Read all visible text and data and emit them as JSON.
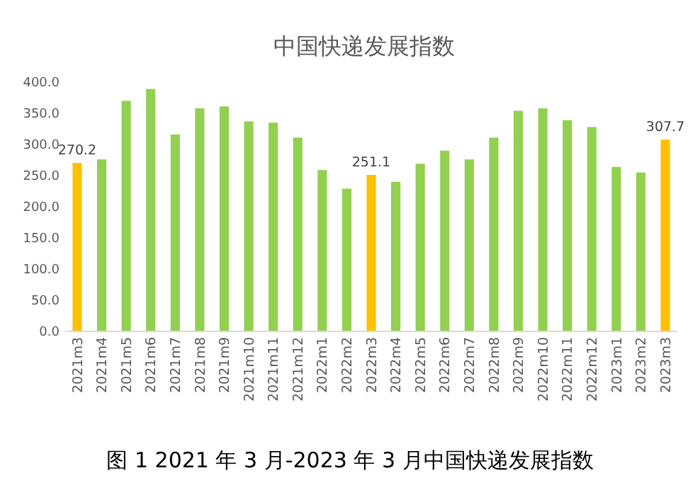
{
  "chart_data": {
    "type": "bar",
    "title": "中国快递发展指数",
    "categories": [
      "2021m3",
      "2021m4",
      "2021m5",
      "2021m6",
      "2021m7",
      "2021m8",
      "2021m9",
      "2021m10",
      "2021m11",
      "2021m12",
      "2022m1",
      "2022m2",
      "2022m3",
      "2022m4",
      "2022m5",
      "2022m6",
      "2022m7",
      "2022m8",
      "2022m9",
      "2022m10",
      "2022m11",
      "2022m12",
      "2023m1",
      "2023m2",
      "2023m3"
    ],
    "values": [
      270.2,
      276,
      370,
      389,
      316,
      358,
      361,
      337,
      335,
      311,
      259,
      229,
      251.1,
      240,
      269,
      290,
      276,
      311,
      354,
      358,
      339,
      328,
      264,
      255,
      307.7
    ],
    "colors": [
      "#ffc000",
      "#92d050",
      "#92d050",
      "#92d050",
      "#92d050",
      "#92d050",
      "#92d050",
      "#92d050",
      "#92d050",
      "#92d050",
      "#92d050",
      "#92d050",
      "#ffc000",
      "#92d050",
      "#92d050",
      "#92d050",
      "#92d050",
      "#92d050",
      "#92d050",
      "#92d050",
      "#92d050",
      "#92d050",
      "#92d050",
      "#92d050",
      "#ffc000"
    ],
    "value_labels": [
      "270.2",
      null,
      null,
      null,
      null,
      null,
      null,
      null,
      null,
      null,
      null,
      null,
      "251.1",
      null,
      null,
      null,
      null,
      null,
      null,
      null,
      null,
      null,
      null,
      null,
      "307.7"
    ],
    "ylim": [
      0,
      400
    ],
    "yticks": [
      {
        "value": 0,
        "label": "0.0"
      },
      {
        "value": 50,
        "label": "50.0"
      },
      {
        "value": 100,
        "label": "100.0"
      },
      {
        "value": 150,
        "label": "150.0"
      },
      {
        "value": 200,
        "label": "200.0"
      },
      {
        "value": 250,
        "label": "250.0"
      },
      {
        "value": 300,
        "label": "300.0"
      },
      {
        "value": 350,
        "label": "350.0"
      },
      {
        "value": 400,
        "label": "400.0"
      }
    ],
    "grid": false,
    "annotations": [
      "图 1 2021 年 3 月-2023 年 3 月中国快递发展指数"
    ]
  }
}
